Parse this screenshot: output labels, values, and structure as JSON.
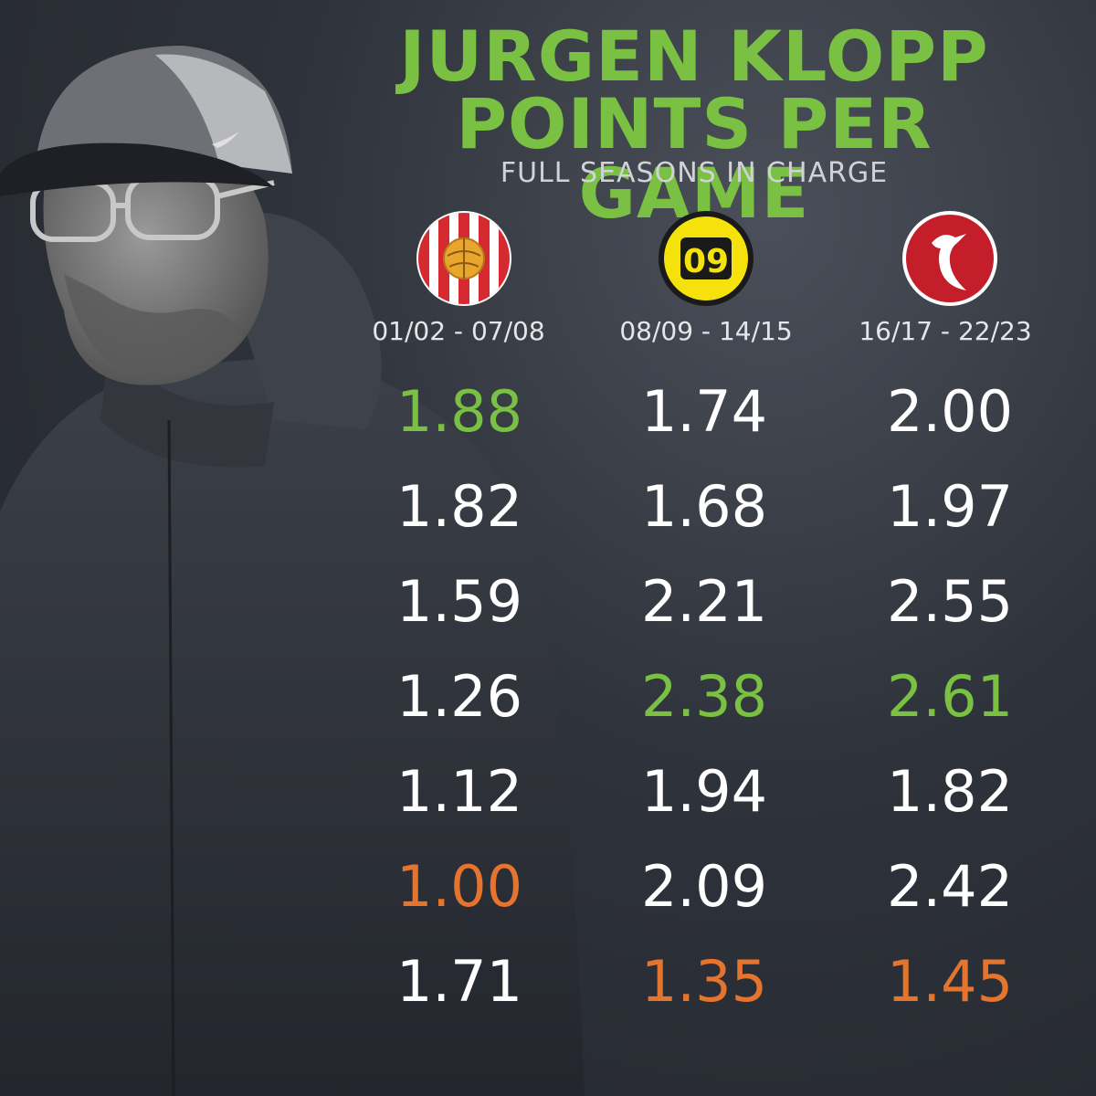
{
  "title_line1": "JURGEN KLOPP",
  "title_line2": "POINTS PER GAME",
  "subtitle": "FULL SEASONS IN CHARGE",
  "logos": [
    {
      "icon": "mainz-crest-icon"
    },
    {
      "icon": "dortmund-09-crest-icon",
      "text": "09"
    },
    {
      "icon": "liverpool-liverbird-crest-icon"
    }
  ],
  "colors": {
    "title_green": "#7ac143",
    "best": "#7ac143",
    "worst": "#e5742f",
    "normal": "#ffffff"
  },
  "chart_data": {
    "type": "table",
    "title": "JURGEN KLOPP POINTS PER GAME",
    "subtitle": "FULL SEASONS IN CHARGE",
    "columns": [
      {
        "period": "01/02 - 07/08",
        "values": [
          "1.88",
          "1.82",
          "1.59",
          "1.26",
          "1.12",
          "1.00",
          "1.71"
        ],
        "best_index": 0,
        "worst_index": 5
      },
      {
        "period": "08/09 - 14/15",
        "values": [
          "1.74",
          "1.68",
          "2.21",
          "2.38",
          "1.94",
          "2.09",
          "1.35"
        ],
        "best_index": 3,
        "worst_index": 6
      },
      {
        "period": "16/17 - 22/23",
        "values": [
          "2.00",
          "1.97",
          "2.55",
          "2.61",
          "1.82",
          "2.42",
          "1.45"
        ],
        "best_index": 3,
        "worst_index": 6
      }
    ]
  }
}
